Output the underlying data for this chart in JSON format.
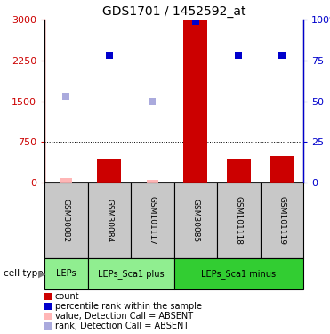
{
  "title": "GDS1701 / 1452592_at",
  "samples": [
    "GSM30082",
    "GSM30084",
    "GSM101117",
    "GSM30085",
    "GSM101118",
    "GSM101119"
  ],
  "count_values": [
    null,
    450,
    null,
    3000,
    450,
    500
  ],
  "count_absent": [
    80,
    null,
    50,
    null,
    null,
    null
  ],
  "rank_values_pct": [
    null,
    78,
    null,
    99,
    78,
    78
  ],
  "rank_absent_pct": [
    53,
    null,
    50,
    null,
    null,
    null
  ],
  "cell_groups": [
    {
      "label": "LEPs",
      "span": [
        0,
        1
      ],
      "color": "#90EE90"
    },
    {
      "label": "LEPs_Sca1 plus",
      "span": [
        1,
        3
      ],
      "color": "#90EE90"
    },
    {
      "label": "LEPs_Sca1 minus",
      "span": [
        3,
        6
      ],
      "color": "#32CD32"
    }
  ],
  "ylim_left": [
    0,
    3000
  ],
  "ylim_right": [
    0,
    100
  ],
  "yticks_left": [
    0,
    750,
    1500,
    2250,
    3000
  ],
  "yticks_right": [
    0,
    25,
    50,
    75,
    100
  ],
  "bar_color": "#CC0000",
  "bar_absent_color": "#FFB6B6",
  "dot_color": "#0000CC",
  "dot_absent_color": "#AAAADD",
  "left_axis_color": "#CC0000",
  "right_axis_color": "#0000CC",
  "sample_bg": "#C8C8C8",
  "legend_items": [
    {
      "color": "#CC0000",
      "label": "count"
    },
    {
      "color": "#0000CC",
      "label": "percentile rank within the sample"
    },
    {
      "color": "#FFB6B6",
      "label": "value, Detection Call = ABSENT"
    },
    {
      "color": "#AAAADD",
      "label": "rank, Detection Call = ABSENT"
    }
  ]
}
